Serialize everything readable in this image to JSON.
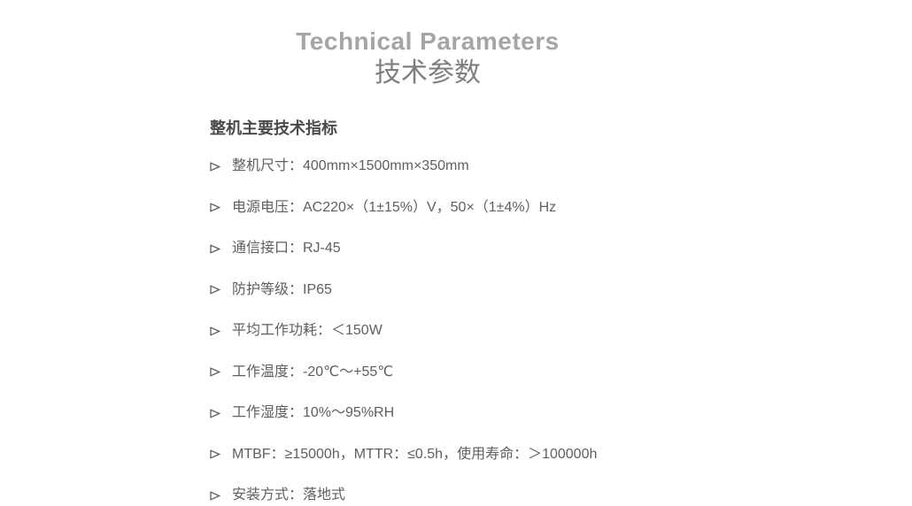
{
  "page": {
    "title_en": "Technical Parameters",
    "title_zh": "技术参数"
  },
  "section": {
    "heading": "整机主要技术指标",
    "items": [
      "整机尺寸：400mm×1500mm×350mm",
      "电源电压：AC220×（1±15%）V，50×（1±4%）Hz",
      "通信接口：RJ-45",
      "防护等级：IP65",
      "平均工作功耗：＜150W",
      "工作温度：-20℃～+55℃",
      "工作湿度：10%～95%RH",
      "MTBF：≥15000h，MTTR：≤0.5h，使用寿命：＞100000h",
      "安装方式：落地式"
    ]
  },
  "icons": {
    "bullet": "➢"
  },
  "colors": {
    "background": "#ffffff",
    "title_en": "#a5a5a5",
    "title_zh": "#7e7e7e",
    "section_heading": "#4a4a4a",
    "body_text": "#5f5f5f"
  }
}
